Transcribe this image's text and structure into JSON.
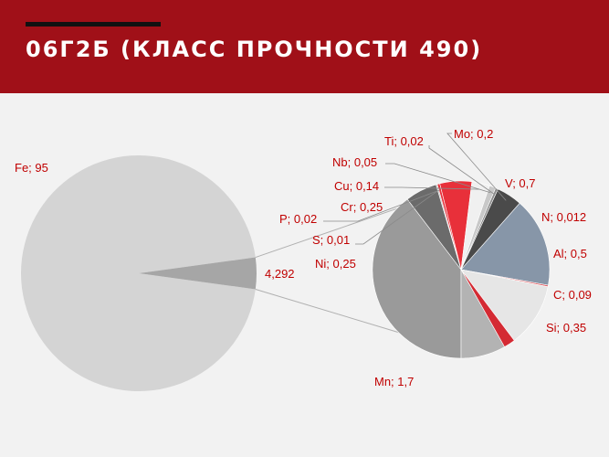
{
  "header": {
    "title": "06Г2Б (КЛАСС ПРОЧНОСТИ 490)"
  },
  "colors": {
    "header_bg": "#a01018",
    "accent_red": "#e8303a"
  },
  "chart_data": {
    "type": "pie",
    "subtype": "pie-of-pie",
    "main": {
      "label": "Fe; 95",
      "value": 95
    },
    "other": {
      "label": "4,292",
      "value": 4.292
    },
    "slices": [
      {
        "name": "Mn",
        "label": "Mn; 1,7",
        "value": 1.7,
        "color": "#9a9a9a"
      },
      {
        "name": "Ni",
        "label": "Ni; 0,25",
        "value": 0.25,
        "color": "#6b6b6b"
      },
      {
        "name": "S",
        "label": "S; 0,01",
        "value": 0.01,
        "color": "#bdbdbd"
      },
      {
        "name": "P",
        "label": "P; 0,02",
        "value": 0.02,
        "color": "#e8303a"
      },
      {
        "name": "Cr",
        "label": "Cr; 0,25",
        "value": 0.25,
        "color": "#e8303a"
      },
      {
        "name": "Cu",
        "label": "Cu; 0,14",
        "value": 0.14,
        "color": "#f0f0f0"
      },
      {
        "name": "Nb",
        "label": "Nb; 0,05",
        "value": 0.05,
        "color": "#c8c8c8"
      },
      {
        "name": "Ti",
        "label": "Ti; 0,02",
        "value": 0.02,
        "color": "#8a8a8a"
      },
      {
        "name": "Mo",
        "label": "Mo; 0,2",
        "value": 0.2,
        "color": "#4a4a4a"
      },
      {
        "name": "V",
        "label": "V; 0,7",
        "value": 0.7,
        "color": "#8796a8"
      },
      {
        "name": "N",
        "label": "N; 0,012",
        "value": 0.012,
        "color": "#e05a60"
      },
      {
        "name": "Al",
        "label": "Al; 0,5",
        "value": 0.5,
        "color": "#e6e6e6"
      },
      {
        "name": "C",
        "label": "C; 0,09",
        "value": 0.09,
        "color": "#d42a33"
      },
      {
        "name": "Si",
        "label": "Si; 0,35",
        "value": 0.35,
        "color": "#b3b3b3"
      }
    ]
  }
}
